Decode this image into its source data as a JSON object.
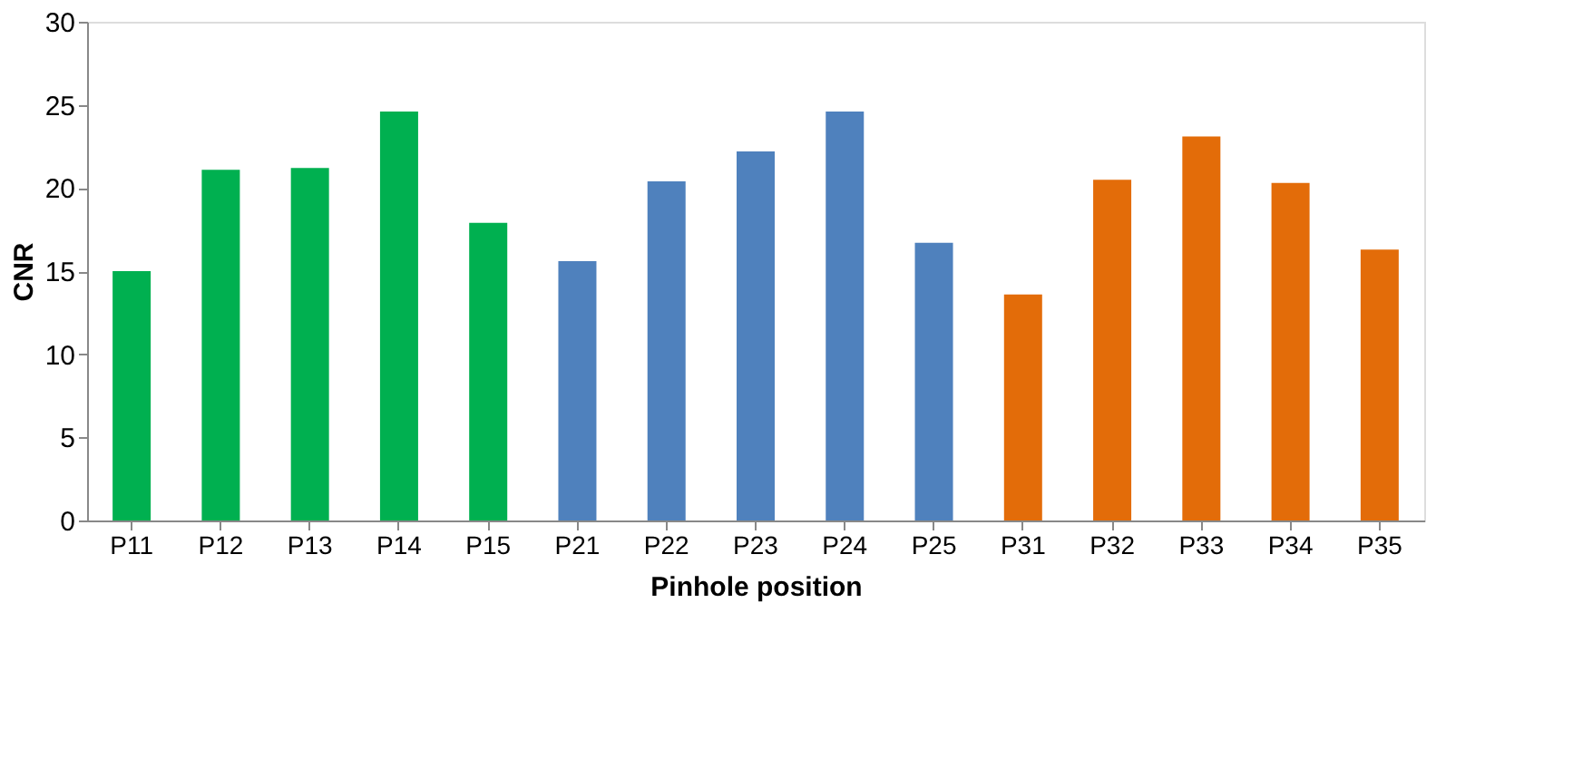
{
  "chart_data": {
    "type": "bar",
    "xlabel": "Pinhole position",
    "ylabel": "CNR",
    "categories": [
      "P11",
      "P12",
      "P13",
      "P14",
      "P15",
      "P21",
      "P22",
      "P23",
      "P24",
      "P25",
      "P31",
      "P32",
      "P33",
      "P34",
      "P35"
    ],
    "values": [
      15.0,
      21.1,
      21.2,
      24.6,
      17.9,
      15.6,
      20.4,
      22.2,
      24.6,
      16.7,
      13.6,
      20.5,
      23.1,
      20.3,
      16.3
    ],
    "colors": [
      "#00b050",
      "#00b050",
      "#00b050",
      "#00b050",
      "#00b050",
      "#4f81bd",
      "#4f81bd",
      "#4f81bd",
      "#4f81bd",
      "#4f81bd",
      "#e36c09",
      "#e36c09",
      "#e36c09",
      "#e36c09",
      "#e36c09"
    ],
    "ylim": [
      0,
      30
    ],
    "yticks": [
      0,
      5,
      10,
      15,
      20,
      25,
      30
    ],
    "grid": false
  }
}
